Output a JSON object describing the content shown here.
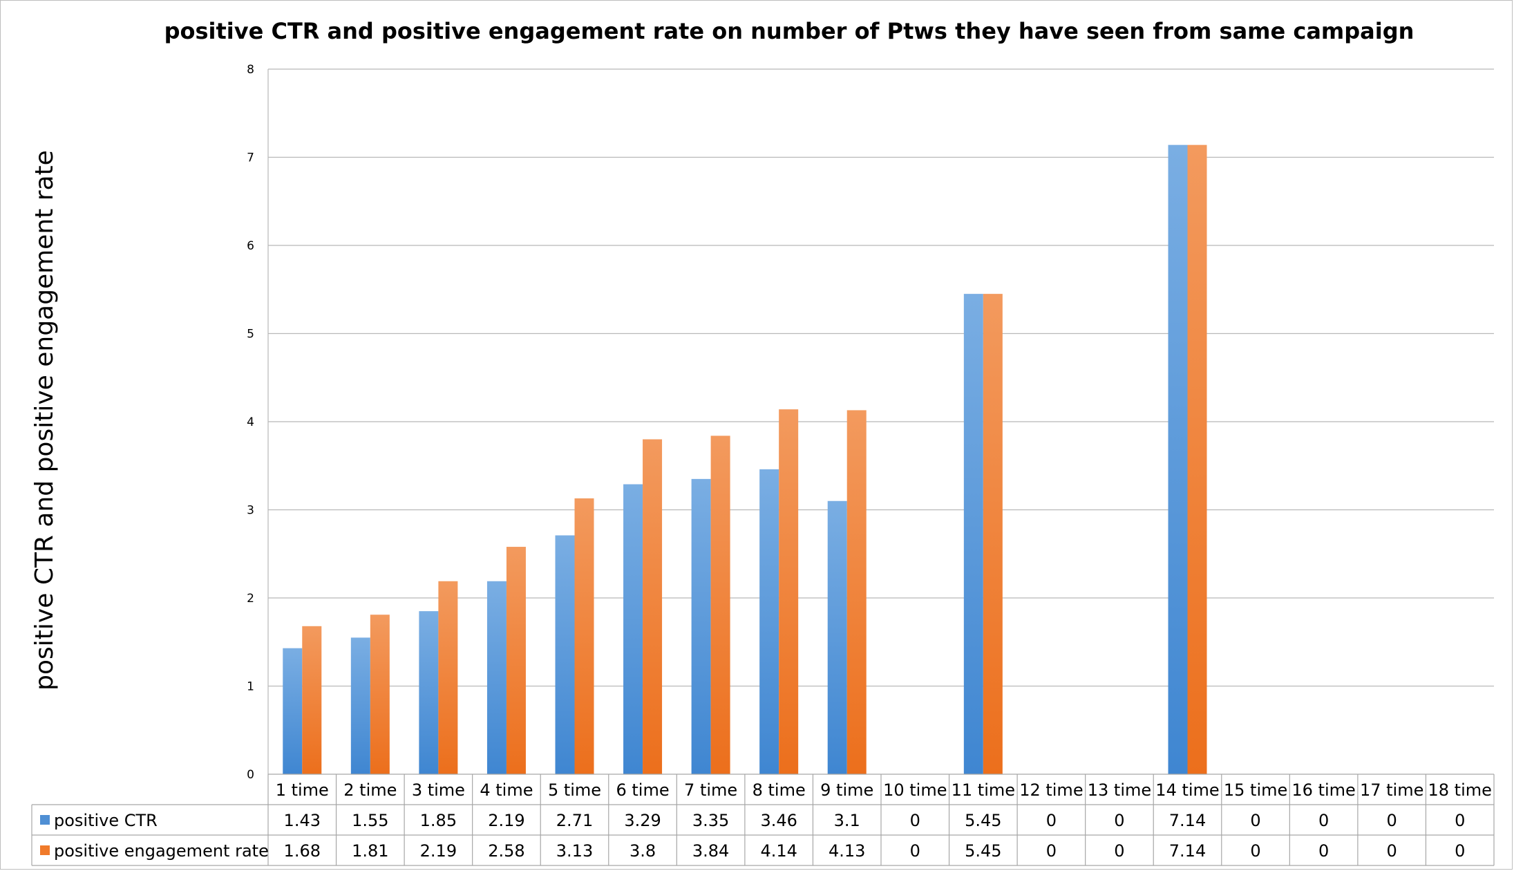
{
  "chart_data": {
    "type": "bar",
    "title": "positive CTR and positive engagement rate on number of Ptws they have seen from same campaign",
    "xlabel": "",
    "ylabel": "positive CTR and positive engagement rate",
    "ylim": [
      0,
      8
    ],
    "yticks": [
      "0",
      "1",
      "2",
      "3",
      "4",
      "5",
      "6",
      "7",
      "8"
    ],
    "grid": true,
    "legend": "bottom-table",
    "categories": [
      "1 time",
      "2 time",
      "3 time",
      "4 time",
      "5 time",
      "6 time",
      "7 time",
      "8 time",
      "9 time",
      "10 time",
      "11 time",
      "12 time",
      "13 time",
      "14 time",
      "15 time",
      "16 time",
      "17 time",
      "18 time"
    ],
    "series": [
      {
        "name": "positive CTR",
        "color": "#4f8fd4",
        "values": [
          1.43,
          1.55,
          1.85,
          2.19,
          2.71,
          3.29,
          3.35,
          3.46,
          3.1,
          0,
          5.45,
          0,
          0,
          7.14,
          0,
          0,
          0,
          0
        ],
        "labels": [
          "1.43",
          "1.55",
          "1.85",
          "2.19",
          "2.71",
          "3.29",
          "3.35",
          "3.46",
          "3.1",
          "0",
          "5.45",
          "0",
          "0",
          "7.14",
          "0",
          "0",
          "0",
          "0"
        ]
      },
      {
        "name": "positive engagement rate",
        "color": "#f07a2a",
        "values": [
          1.68,
          1.81,
          2.19,
          2.58,
          3.13,
          3.8,
          3.84,
          4.14,
          4.13,
          0,
          5.45,
          0,
          0,
          7.14,
          0,
          0,
          0,
          0
        ],
        "labels": [
          "1.68",
          "1.81",
          "2.19",
          "2.58",
          "3.13",
          "3.8",
          "3.84",
          "4.14",
          "4.13",
          "0",
          "5.45",
          "0",
          "0",
          "7.14",
          "0",
          "0",
          "0",
          "0"
        ]
      }
    ]
  }
}
